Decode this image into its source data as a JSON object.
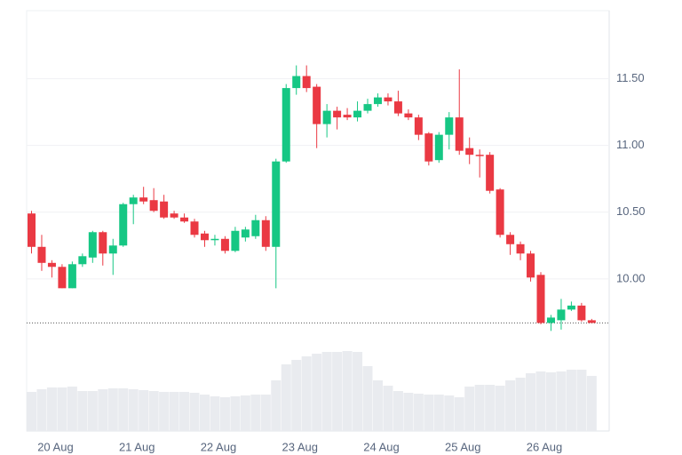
{
  "chart_data": {
    "type": "candlestick",
    "categories": [
      null,
      null,
      "20 Aug",
      null,
      null,
      null,
      null,
      null,
      null,
      null,
      "21 Aug",
      null,
      null,
      null,
      null,
      null,
      null,
      null,
      "22 Aug",
      null,
      null,
      null,
      null,
      null,
      null,
      null,
      "23 Aug",
      null,
      null,
      null,
      null,
      null,
      null,
      null,
      "24 Aug",
      null,
      null,
      null,
      null,
      null,
      null,
      null,
      "25 Aug",
      null,
      null,
      null,
      null,
      null,
      null,
      null,
      "26 Aug",
      null,
      null,
      null,
      null,
      null
    ],
    "open": [
      10.49,
      10.24,
      10.12,
      10.09,
      9.93,
      10.11,
      10.16,
      10.35,
      10.19,
      10.25,
      10.56,
      10.61,
      10.59,
      10.58,
      10.49,
      10.46,
      10.43,
      10.34,
      10.29,
      10.3,
      10.21,
      10.31,
      10.32,
      10.44,
      10.24,
      10.88,
      11.43,
      11.52,
      11.44,
      11.16,
      11.26,
      11.23,
      11.21,
      11.26,
      11.31,
      11.36,
      11.33,
      11.24,
      11.21,
      11.09,
      10.89,
      11.08,
      11.21,
      10.98,
      10.93,
      10.93,
      10.67,
      10.33,
      10.26,
      10.19,
      10.03,
      9.67,
      9.69,
      9.77,
      9.8,
      9.69
    ],
    "high": [
      10.51,
      10.33,
      10.14,
      10.11,
      10.13,
      10.19,
      10.36,
      10.36,
      10.3,
      10.57,
      10.63,
      10.69,
      10.68,
      10.63,
      10.51,
      10.49,
      10.45,
      10.36,
      10.33,
      10.32,
      10.39,
      10.39,
      10.48,
      10.47,
      10.9,
      11.46,
      11.6,
      11.6,
      11.46,
      11.31,
      11.29,
      11.28,
      11.33,
      11.35,
      11.39,
      11.39,
      11.41,
      11.27,
      11.23,
      11.1,
      11.1,
      11.25,
      11.57,
      11.06,
      10.97,
      10.95,
      10.68,
      10.35,
      10.28,
      10.21,
      10.05,
      9.73,
      9.85,
      9.83,
      9.82,
      9.7
    ],
    "low": [
      10.19,
      10.06,
      10.01,
      9.93,
      9.93,
      10.09,
      10.12,
      10.1,
      10.03,
      10.24,
      10.41,
      10.56,
      10.5,
      10.45,
      10.45,
      10.42,
      10.31,
      10.24,
      10.25,
      10.19,
      10.2,
      10.28,
      10.3,
      10.21,
      9.93,
      10.87,
      11.38,
      11.4,
      10.98,
      11.06,
      11.12,
      11.19,
      11.18,
      11.24,
      11.29,
      11.3,
      11.22,
      11.19,
      11.04,
      10.85,
      10.87,
      10.97,
      10.93,
      10.86,
      10.76,
      10.64,
      10.31,
      10.18,
      10.14,
      9.98,
      9.66,
      9.61,
      9.62,
      9.76,
      9.68,
      9.67
    ],
    "close": [
      10.24,
      10.12,
      10.09,
      9.93,
      10.11,
      10.17,
      10.35,
      10.19,
      10.25,
      10.56,
      10.61,
      10.58,
      10.51,
      10.46,
      10.46,
      10.43,
      10.33,
      10.29,
      10.3,
      10.21,
      10.36,
      10.37,
      10.44,
      10.24,
      10.88,
      11.43,
      11.52,
      11.43,
      11.16,
      11.26,
      11.21,
      11.21,
      11.26,
      11.31,
      11.36,
      11.33,
      11.24,
      11.21,
      11.08,
      10.88,
      11.08,
      11.21,
      10.96,
      10.93,
      10.92,
      10.66,
      10.33,
      10.26,
      10.19,
      10.01,
      9.67,
      9.71,
      9.77,
      9.8,
      9.69,
      9.67
    ],
    "volume": [
      44,
      47,
      49,
      49,
      50,
      45,
      45,
      47,
      48,
      48,
      47,
      46,
      45,
      44,
      44,
      44,
      43,
      41,
      39,
      38,
      39,
      40,
      41,
      41,
      57,
      75,
      80,
      84,
      87,
      89,
      89,
      90,
      89,
      73,
      57,
      51,
      45,
      43,
      42,
      41,
      41,
      40,
      38,
      50,
      52,
      52,
      51,
      57,
      60,
      65,
      67,
      66,
      67,
      69,
      69,
      62
    ],
    "volume_color": "#e9ebef",
    "up_color": "#16c784",
    "down_color": "#ea3943",
    "last_price": 9.67,
    "ylim": [
      8.86,
      12.01
    ],
    "yticks": [
      {
        "value": 10,
        "label": "10.00"
      },
      {
        "value": 10.5,
        "label": "10.50"
      },
      {
        "value": 11,
        "label": "11.00"
      },
      {
        "value": 11.5,
        "label": "11.50"
      }
    ],
    "grid": true
  }
}
